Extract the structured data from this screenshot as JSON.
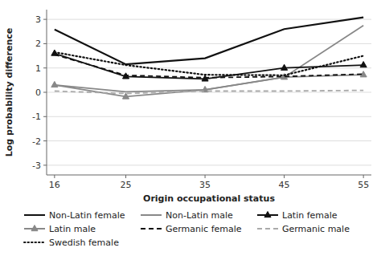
{
  "chart_data": {
    "type": "line",
    "xlabel": "Origin occupational status",
    "ylabel": "Log probability difference",
    "x": [
      16,
      25,
      35,
      45,
      55
    ],
    "series": [
      {
        "name": "Non-Latin female",
        "color": "#111111",
        "line_style": "solid",
        "values": [
          2.58,
          1.15,
          1.4,
          2.6,
          3.08
        ]
      },
      {
        "name": "Non-Latin male",
        "color": "#888888",
        "line_style": "solid",
        "values": [
          0.3,
          0.02,
          0.1,
          0.62,
          2.75
        ]
      },
      {
        "name": "Latin female",
        "color": "#111111",
        "line_style": "solid",
        "marker": "triangle",
        "values": [
          1.6,
          0.65,
          0.55,
          1.0,
          1.12
        ]
      },
      {
        "name": "Latin male",
        "color": "#888888",
        "line_style": "solid",
        "marker": "triangle",
        "values": [
          0.3,
          -0.18,
          0.1,
          0.62,
          0.72
        ]
      },
      {
        "name": "Germanic female",
        "color": "#111111",
        "line_style": "dashed",
        "values": [
          1.55,
          0.7,
          0.6,
          0.65,
          0.75
        ]
      },
      {
        "name": "Germanic male",
        "color": "#aaaaaa",
        "line_style": "dashed",
        "values": [
          0.05,
          -0.05,
          0.05,
          0.05,
          0.08
        ]
      },
      {
        "name": "Swedish female",
        "color": "#111111",
        "line_style": "dotted",
        "values": [
          1.65,
          1.12,
          0.72,
          0.7,
          1.5
        ]
      }
    ],
    "xlim": [
      15,
      56
    ],
    "xticks": [
      16,
      25,
      35,
      45,
      55
    ],
    "ylim": [
      -3.4,
      3.4
    ],
    "yticks": [
      -3,
      -2,
      -1,
      0,
      1,
      2,
      3
    ],
    "grid": "y",
    "legend": "bottom"
  }
}
